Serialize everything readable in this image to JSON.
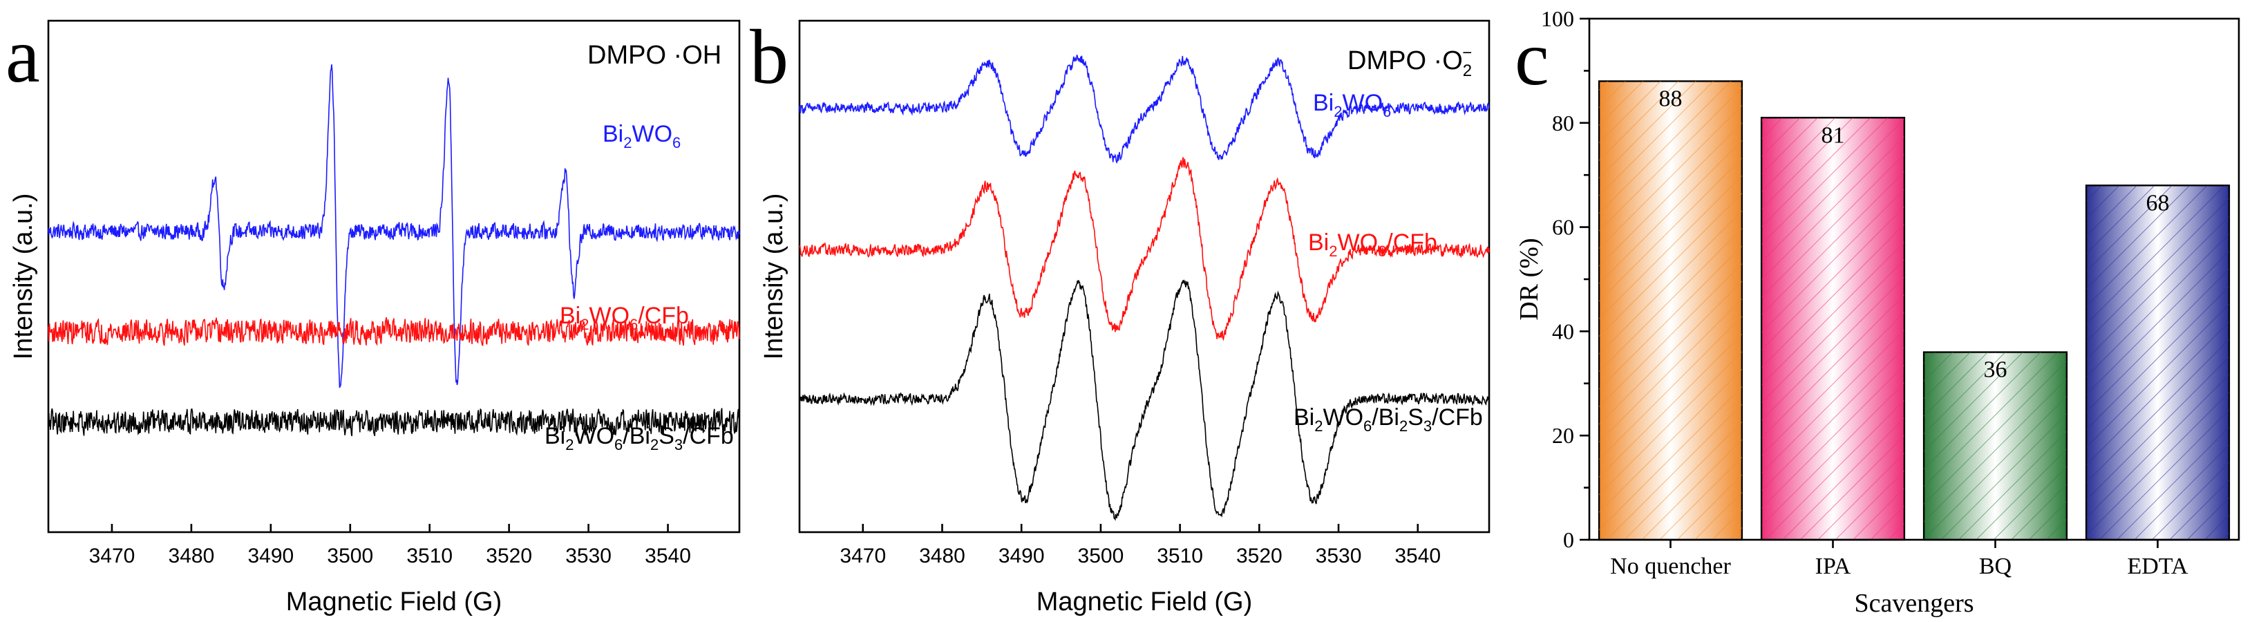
{
  "chart_data": [
    {
      "type": "line",
      "panel_label": "a",
      "title": "DMPO  ·OH",
      "title_parts": {
        "main": "DMPO  ·OH"
      },
      "xlabel": "Magnetic Field (G)",
      "ylabel": "Intensity (a.u.)",
      "xlim": [
        3462,
        3549
      ],
      "xticks": [
        "3470",
        "3480",
        "3490",
        "3500",
        "3510",
        "3520",
        "3530",
        "3540"
      ],
      "xtick_values": [
        3470,
        3480,
        3490,
        3500,
        3510,
        3520,
        3530,
        3540
      ],
      "series": [
        {
          "name": "Bi2WO6",
          "label_parts": {
            "a": "Bi",
            "b": "2",
            "c": "WO",
            "d": "6"
          },
          "color": "#1c1cff",
          "baseline": 1.0,
          "noise": 0.1,
          "lines": [
            {
              "x": 3483.5,
              "amp": 0.55
            },
            {
              "x": 3498.2,
              "amp": 1.6
            },
            {
              "x": 3512.9,
              "amp": 1.55
            },
            {
              "x": 3527.6,
              "amp": 0.6
            }
          ]
        },
        {
          "name": "Bi2WO6/CFb",
          "label_parts": {
            "a": "Bi",
            "b": "2",
            "c": "WO",
            "d": "6",
            "e": "/CFb"
          },
          "color": "#ff1010",
          "baseline": 0.0,
          "noise": 0.15,
          "lines": []
        },
        {
          "name": "Bi2WO6/Bi2S3/CFb",
          "label_parts": {
            "a": "Bi",
            "b": "2",
            "c": "WO",
            "d": "6",
            "e": "/Bi",
            "f": "2",
            "g": "S",
            "h": "3",
            "i": "/CFb"
          },
          "color": "#000000",
          "baseline": -0.9,
          "noise": 0.15,
          "lines": []
        }
      ]
    },
    {
      "type": "line",
      "panel_label": "b",
      "title": "DMPO  ·O2−",
      "title_parts": {
        "main": "DMPO  ·O",
        "sub": "2",
        "sup": "−"
      },
      "xlabel": "Magnetic Field (G)",
      "ylabel": "Intensity (a.u.)",
      "xlim": [
        3462,
        3549
      ],
      "xticks": [
        "3470",
        "3480",
        "3490",
        "3500",
        "3510",
        "3520",
        "3530",
        "3540"
      ],
      "xtick_values": [
        3470,
        3480,
        3490,
        3500,
        3510,
        3520,
        3530,
        3540
      ],
      "series": [
        {
          "name": "Bi2WO6",
          "label_parts": {
            "a": "Bi",
            "b": "2",
            "c": "WO",
            "d": "6"
          },
          "color": "#1c1cff",
          "baseline": 1.05,
          "noise": 0.045,
          "lines": [
            {
              "x": 3488.0,
              "amp": 0.32
            },
            {
              "x": 3499.5,
              "amp": 0.36
            },
            {
              "x": 3512.8,
              "amp": 0.34
            },
            {
              "x": 3524.6,
              "amp": 0.32
            }
          ]
        },
        {
          "name": "Bi2WO6/CFb",
          "label_parts": {
            "a": "Bi",
            "b": "2",
            "c": "WO",
            "d": "6",
            "e": "/CFb"
          },
          "color": "#ff1010",
          "baseline": 0.05,
          "noise": 0.05,
          "lines": [
            {
              "x": 3488.0,
              "amp": 0.45
            },
            {
              "x": 3499.5,
              "amp": 0.55
            },
            {
              "x": 3512.8,
              "amp": 0.62
            },
            {
              "x": 3524.6,
              "amp": 0.48
            }
          ]
        },
        {
          "name": "Bi2WO6/Bi2S3/CFb",
          "label_parts": {
            "a": "Bi",
            "b": "2",
            "c": "WO",
            "d": "6",
            "e": "/Bi",
            "f": "2",
            "g": "S",
            "h": "3",
            "i": "/CFb"
          },
          "color": "#000000",
          "baseline": -1.0,
          "noise": 0.045,
          "lines": [
            {
              "x": 3488.0,
              "amp": 0.72
            },
            {
              "x": 3499.5,
              "amp": 0.82
            },
            {
              "x": 3512.8,
              "amp": 0.82
            },
            {
              "x": 3524.6,
              "amp": 0.72
            }
          ]
        }
      ]
    },
    {
      "type": "bar",
      "panel_label": "c",
      "xlabel": "Scavengers",
      "ylabel": "DR (%)",
      "ylim": [
        0,
        100
      ],
      "yticks": [
        "0",
        "20",
        "40",
        "60",
        "80",
        "100"
      ],
      "ytick_values": [
        0,
        20,
        40,
        60,
        80,
        100
      ],
      "categories": [
        "No quencher",
        "IPA",
        "BQ",
        "EDTA"
      ],
      "values": [
        88,
        81,
        36,
        68
      ],
      "data_labels": [
        "88",
        "81",
        "36",
        "68"
      ],
      "colors": [
        "#f08a2c",
        "#ee2f7a",
        "#2e7d3c",
        "#2b3196"
      ]
    }
  ]
}
